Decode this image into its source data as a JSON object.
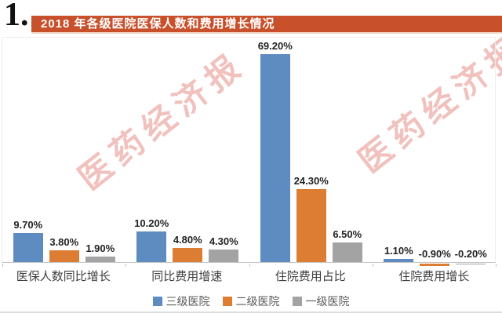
{
  "figure_number": "1.",
  "title": "2018 年各级医院医保人数和费用增长情况",
  "watermark": "医药经济报",
  "colors": {
    "title_bar": "#C8502B",
    "series_tertiary": "#5E8BC0",
    "series_secondary": "#DD7D33",
    "series_primary": "#A3A3A3",
    "axis_line": "#C6C6C6"
  },
  "chart_data": {
    "type": "bar",
    "title": "2018 年各级医院医保人数和费用增长情况",
    "categories": [
      "医保人数同比增长",
      "同比费用增速",
      "住院费用占比",
      "住院费用增长"
    ],
    "series": [
      {
        "name": "三级医院",
        "color": "#5E8BC0",
        "values": [
          9.7,
          10.2,
          69.2,
          1.1
        ],
        "labels": [
          "9.70%",
          "10.20%",
          "69.20%",
          "1.10%"
        ]
      },
      {
        "name": "二级医院",
        "color": "#DD7D33",
        "values": [
          3.8,
          4.8,
          24.3,
          -0.9
        ],
        "labels": [
          "3.80%",
          "4.80%",
          "24.30%",
          "-0.90%"
        ]
      },
      {
        "name": "一级医院",
        "color": "#A3A3A3",
        "values": [
          1.9,
          4.3,
          6.5,
          -0.2
        ],
        "labels": [
          "1.90%",
          "4.30%",
          "6.50%",
          "-0.20%"
        ]
      }
    ],
    "ylim": [
      -2,
      75
    ],
    "grid": false,
    "data_labels": true,
    "legend_position": "bottom"
  }
}
